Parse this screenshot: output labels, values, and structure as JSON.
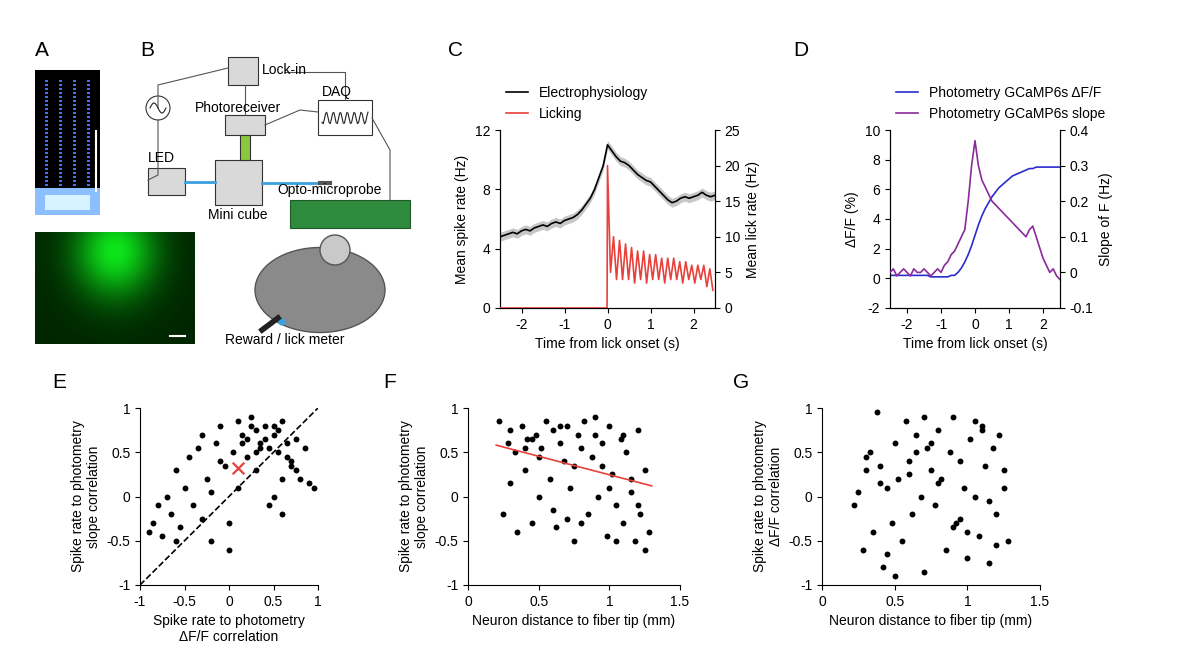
{
  "panels": {
    "A": {
      "label": "A"
    },
    "B": {
      "label": "B",
      "components": [
        "Lock-in",
        "Photoreceiver",
        "DAQ",
        "LED",
        "Mini cube",
        "Opto-microprobe",
        "Reward / lick meter"
      ]
    }
  },
  "chart_data": [
    {
      "label": "C",
      "type": "line",
      "xlabel": "Time from lick onset (s)",
      "ylabel": "Mean spike rate (Hz)",
      "y2label": "Mean lick rate (Hz)",
      "xlim": [
        -2.5,
        2.5
      ],
      "xticks": [
        -2,
        -1,
        0,
        1,
        2
      ],
      "ylim": [
        0,
        12
      ],
      "yticks": [
        0,
        4,
        8,
        12
      ],
      "y2lim": [
        0,
        25
      ],
      "y2ticks": [
        0,
        5,
        10,
        15,
        20,
        25
      ],
      "legend": "lower left",
      "series": [
        {
          "name": "Electrophysiology",
          "color": "#000000",
          "x": [
            -2.5,
            -2.4,
            -2.3,
            -2.2,
            -2.1,
            -2.0,
            -1.9,
            -1.8,
            -1.7,
            -1.6,
            -1.5,
            -1.4,
            -1.3,
            -1.2,
            -1.1,
            -1.0,
            -0.9,
            -0.8,
            -0.7,
            -0.6,
            -0.5,
            -0.4,
            -0.3,
            -0.2,
            -0.1,
            0.0,
            0.1,
            0.2,
            0.3,
            0.4,
            0.5,
            0.6,
            0.7,
            0.8,
            0.9,
            1.0,
            1.1,
            1.2,
            1.3,
            1.4,
            1.5,
            1.6,
            1.7,
            1.8,
            1.9,
            2.0,
            2.1,
            2.2,
            2.3,
            2.4,
            2.5
          ],
          "values": [
            4.8,
            4.9,
            5.0,
            5.1,
            5.0,
            5.2,
            5.3,
            5.2,
            5.4,
            5.5,
            5.6,
            5.5,
            5.7,
            5.8,
            5.7,
            5.9,
            6.0,
            6.1,
            6.3,
            6.6,
            7.0,
            7.4,
            8.0,
            8.8,
            9.6,
            11.0,
            10.6,
            10.2,
            9.9,
            9.8,
            9.6,
            9.3,
            9.0,
            8.8,
            8.6,
            8.5,
            8.2,
            7.9,
            7.6,
            7.3,
            7.1,
            7.2,
            7.4,
            7.5,
            7.4,
            7.5,
            7.6,
            7.8,
            7.6,
            7.5,
            7.6
          ],
          "error": [
            0.3,
            0.3,
            0.3,
            0.3,
            0.3,
            0.3,
            0.3,
            0.3,
            0.3,
            0.3,
            0.3,
            0.3,
            0.3,
            0.3,
            0.3,
            0.3,
            0.3,
            0.3,
            0.3,
            0.3,
            0.3,
            0.3,
            0.3,
            0.3,
            0.3,
            0.3,
            0.3,
            0.3,
            0.3,
            0.3,
            0.3,
            0.3,
            0.3,
            0.3,
            0.3,
            0.3,
            0.3,
            0.3,
            0.3,
            0.3,
            0.3,
            0.3,
            0.3,
            0.3,
            0.3,
            0.3,
            0.3,
            0.3,
            0.3,
            0.3,
            0.3
          ]
        },
        {
          "name": "Licking",
          "color": "#e8413c",
          "axis": "y2",
          "x": [
            -2.5,
            -0.01,
            0.0,
            0.07,
            0.14,
            0.21,
            0.28,
            0.35,
            0.42,
            0.49,
            0.56,
            0.63,
            0.7,
            0.77,
            0.84,
            0.91,
            0.98,
            1.05,
            1.12,
            1.19,
            1.26,
            1.33,
            1.4,
            1.47,
            1.54,
            1.61,
            1.68,
            1.75,
            1.82,
            1.89,
            1.96,
            2.03,
            2.1,
            2.17,
            2.24,
            2.31,
            2.38,
            2.45
          ],
          "values": [
            0,
            0,
            20,
            5,
            10,
            4,
            9.5,
            4,
            9,
            4,
            8.5,
            3.5,
            8,
            4,
            8,
            3.5,
            7.5,
            4,
            7.5,
            4,
            7,
            3.5,
            7,
            4,
            7,
            4,
            6.5,
            3.5,
            6.5,
            4,
            6,
            3.5,
            6,
            4,
            6,
            3,
            5.5,
            2.5
          ]
        }
      ]
    },
    {
      "label": "D",
      "type": "line",
      "xlabel": "Time from lick onset (s)",
      "ylabel": "ΔF/F (%)",
      "y2label": "Slope of F (Hz)",
      "xlim": [
        -2.5,
        2.5
      ],
      "xticks": [
        -2,
        -1,
        0,
        1,
        2
      ],
      "ylim": [
        -2,
        10
      ],
      "yticks": [
        -2,
        0,
        2,
        4,
        6,
        8,
        10
      ],
      "y2lim": [
        -0.1,
        0.4
      ],
      "y2ticks": [
        -0.1,
        0,
        0.1,
        0.2,
        0.3,
        0.4
      ],
      "legend": "lower left",
      "x": [
        -2.5,
        -2.4,
        -2.3,
        -2.2,
        -2.1,
        -2.0,
        -1.9,
        -1.8,
        -1.7,
        -1.6,
        -1.5,
        -1.4,
        -1.3,
        -1.2,
        -1.1,
        -1.0,
        -0.9,
        -0.8,
        -0.7,
        -0.6,
        -0.5,
        -0.4,
        -0.3,
        -0.2,
        -0.1,
        0.0,
        0.1,
        0.2,
        0.3,
        0.4,
        0.5,
        0.6,
        0.7,
        0.8,
        0.9,
        1.0,
        1.1,
        1.2,
        1.3,
        1.4,
        1.5,
        1.6,
        1.7,
        1.8,
        1.9,
        2.0,
        2.1,
        2.2,
        2.3,
        2.4,
        2.5
      ],
      "series": [
        {
          "name": "Photometry GCaMP6s ΔF/F",
          "color": "#2b2bd0",
          "values": [
            0.2,
            0.2,
            0.2,
            0.2,
            0.2,
            0.2,
            0.2,
            0.2,
            0.2,
            0.2,
            0.2,
            0.2,
            0.1,
            0.1,
            0.1,
            0.1,
            0.1,
            0.1,
            0.2,
            0.2,
            0.4,
            0.7,
            1.1,
            1.6,
            2.2,
            2.9,
            3.6,
            4.2,
            4.7,
            5.1,
            5.5,
            5.8,
            6.1,
            6.3,
            6.5,
            6.7,
            6.9,
            7.0,
            7.1,
            7.2,
            7.3,
            7.4,
            7.4,
            7.5,
            7.5,
            7.5,
            7.5,
            7.5,
            7.5,
            7.5,
            7.5
          ]
        },
        {
          "name": "Photometry GCaMP6s slope",
          "color": "#8b2a9b",
          "axis": "y2",
          "values": [
            0.0,
            0.01,
            -0.01,
            0.0,
            0.01,
            0.0,
            -0.01,
            0.01,
            0.0,
            0.0,
            0.01,
            0.0,
            -0.01,
            0.0,
            0.01,
            0.0,
            0.02,
            0.03,
            0.05,
            0.06,
            0.08,
            0.1,
            0.12,
            0.2,
            0.3,
            0.37,
            0.3,
            0.26,
            0.24,
            0.22,
            0.2,
            0.19,
            0.18,
            0.17,
            0.16,
            0.15,
            0.14,
            0.13,
            0.12,
            0.11,
            0.1,
            0.12,
            0.13,
            0.1,
            0.07,
            0.04,
            0.02,
            0.0,
            0.01,
            -0.01,
            -0.02
          ]
        }
      ]
    },
    {
      "label": "E",
      "type": "scatter",
      "xlabel": "Spike rate to photometry\nΔF/F correlation",
      "ylabel": "Spike rate to photometry\nslope correlation",
      "xlim": [
        -1,
        1
      ],
      "xticks": [
        -1,
        -0.5,
        0,
        0.5,
        1
      ],
      "ylim": [
        -1,
        1
      ],
      "yticks": [
        -1,
        -0.5,
        0,
        0.5,
        1
      ],
      "series": [
        {
          "type": "line",
          "color": "#000000",
          "line_style": "dashed",
          "x": [
            -1,
            1
          ],
          "values": [
            -1,
            1
          ]
        },
        {
          "color": "#000000",
          "marker": "circle",
          "x": [
            -0.9,
            -0.85,
            -0.8,
            -0.75,
            -0.7,
            -0.65,
            -0.6,
            -0.55,
            -0.5,
            -0.45,
            -0.4,
            -0.35,
            -0.3,
            -0.25,
            -0.2,
            -0.15,
            -0.1,
            -0.05,
            0.0,
            0.05,
            0.1,
            0.15,
            0.2,
            0.25,
            0.3,
            0.35,
            0.4,
            0.45,
            0.5,
            0.55,
            0.6,
            0.65,
            0.7,
            0.75,
            0.8,
            0.85,
            0.9,
            0.95,
            -0.3,
            -0.1,
            0.1,
            0.2,
            0.3,
            0.4,
            0.5,
            0.6,
            0.7,
            0.25,
            0.35,
            0.45,
            0.55,
            0.65,
            -0.2,
            0.0,
            0.15,
            0.3,
            0.5,
            0.6,
            0.75,
            -0.6
          ],
          "values": [
            -0.4,
            -0.3,
            -0.1,
            -0.45,
            0.0,
            -0.2,
            0.3,
            -0.35,
            0.1,
            0.45,
            -0.1,
            0.55,
            0.7,
            0.2,
            -0.5,
            0.6,
            0.8,
            0.35,
            -0.6,
            0.5,
            0.85,
            0.7,
            0.65,
            0.9,
            0.75,
            0.6,
            0.8,
            0.55,
            0.7,
            0.5,
            0.85,
            0.6,
            0.4,
            0.3,
            0.2,
            0.55,
            0.15,
            0.1,
            -0.25,
            0.4,
            0.1,
            0.45,
            0.3,
            0.65,
            0.0,
            -0.2,
            0.35,
            0.8,
            0.55,
            -0.1,
            0.75,
            0.45,
            0.05,
            -0.3,
            0.6,
            0.5,
            0.8,
            0.2,
            0.65,
            -0.5
          ]
        },
        {
          "color": "#e8413c",
          "marker": "x",
          "x": [
            0.1
          ],
          "values": [
            0.32
          ]
        }
      ]
    },
    {
      "label": "F",
      "type": "scatter",
      "xlabel": "Neuron distance to fiber tip (mm)",
      "ylabel": "Spike rate to photometry\nslope correlation",
      "xlim": [
        0,
        1.5
      ],
      "xticks": [
        0,
        0.5,
        1,
        1.5
      ],
      "ylim": [
        -1,
        1
      ],
      "yticks": [
        -1,
        -0.5,
        0,
        0.5,
        1
      ],
      "series": [
        {
          "color": "#000000",
          "marker": "circle",
          "x": [
            0.22,
            0.25,
            0.28,
            0.3,
            0.33,
            0.35,
            0.38,
            0.4,
            0.42,
            0.45,
            0.48,
            0.5,
            0.52,
            0.55,
            0.58,
            0.6,
            0.62,
            0.65,
            0.68,
            0.7,
            0.72,
            0.75,
            0.78,
            0.8,
            0.82,
            0.85,
            0.88,
            0.9,
            0.92,
            0.95,
            0.98,
            1.0,
            1.02,
            1.05,
            1.08,
            1.1,
            1.12,
            1.15,
            1.18,
            1.2,
            1.22,
            1.25,
            1.28,
            0.3,
            0.45,
            0.6,
            0.75,
            0.9,
            1.05,
            1.15,
            1.25,
            0.5,
            0.65,
            0.8,
            0.95,
            1.1,
            1.2,
            0.4,
            0.7,
            1.0
          ],
          "values": [
            0.85,
            -0.2,
            0.6,
            0.75,
            0.5,
            -0.4,
            0.8,
            0.3,
            0.65,
            -0.3,
            0.7,
            0.0,
            0.55,
            0.85,
            0.2,
            0.75,
            -0.35,
            0.6,
            0.4,
            0.8,
            0.1,
            -0.5,
            0.7,
            0.55,
            0.85,
            -0.2,
            0.45,
            0.7,
            0.0,
            0.6,
            -0.45,
            0.8,
            0.25,
            -0.1,
            0.65,
            -0.3,
            0.5,
            0.05,
            -0.5,
            0.75,
            -0.2,
            0.3,
            -0.4,
            0.15,
            0.65,
            -0.15,
            0.35,
            0.9,
            -0.5,
            0.2,
            -0.6,
            0.45,
            0.8,
            -0.3,
            0.35,
            0.7,
            -0.1,
            0.55,
            -0.25,
            0.1
          ]
        },
        {
          "type": "line",
          "color": "#e8413c",
          "line_style": "solid",
          "x": [
            0.2,
            1.3
          ],
          "values": [
            0.58,
            0.12
          ]
        }
      ]
    },
    {
      "label": "G",
      "type": "scatter",
      "xlabel": "Neuron distance to fiber tip (mm)",
      "ylabel": "Spike rate to photometry\nΔF/F correlation",
      "xlim": [
        0,
        1.5
      ],
      "xticks": [
        0,
        0.5,
        1,
        1.5
      ],
      "ylim": [
        -1,
        1
      ],
      "yticks": [
        -1,
        -0.5,
        0,
        0.5,
        1
      ],
      "series": [
        {
          "color": "#000000",
          "marker": "circle",
          "x": [
            0.22,
            0.25,
            0.28,
            0.3,
            0.33,
            0.35,
            0.38,
            0.4,
            0.42,
            0.45,
            0.48,
            0.5,
            0.52,
            0.55,
            0.58,
            0.6,
            0.62,
            0.65,
            0.68,
            0.7,
            0.72,
            0.75,
            0.78,
            0.8,
            0.82,
            0.85,
            0.88,
            0.9,
            0.92,
            0.95,
            0.98,
            1.0,
            1.02,
            1.05,
            1.08,
            1.1,
            1.12,
            1.15,
            1.18,
            1.2,
            1.22,
            1.25,
            1.28,
            0.3,
            0.45,
            0.6,
            0.75,
            0.9,
            1.05,
            1.15,
            1.25,
            0.5,
            0.65,
            0.8,
            0.95,
            1.1,
            1.2,
            0.4,
            0.7,
            1.0
          ],
          "values": [
            -0.1,
            0.05,
            -0.6,
            0.3,
            0.5,
            -0.4,
            0.95,
            0.15,
            -0.8,
            0.1,
            -0.3,
            0.6,
            0.2,
            -0.5,
            0.85,
            0.4,
            -0.2,
            0.7,
            0.0,
            -0.85,
            0.55,
            0.3,
            -0.1,
            0.75,
            0.2,
            -0.6,
            0.5,
            0.9,
            -0.3,
            0.4,
            0.1,
            -0.7,
            0.65,
            0.0,
            -0.45,
            0.8,
            0.35,
            -0.75,
            0.55,
            -0.2,
            0.7,
            0.1,
            -0.5,
            0.45,
            -0.65,
            0.25,
            0.6,
            -0.35,
            0.85,
            -0.05,
            0.3,
            -0.9,
            0.5,
            0.15,
            -0.25,
            0.75,
            -0.55,
            0.35,
            0.9,
            -0.4
          ]
        }
      ]
    }
  ]
}
